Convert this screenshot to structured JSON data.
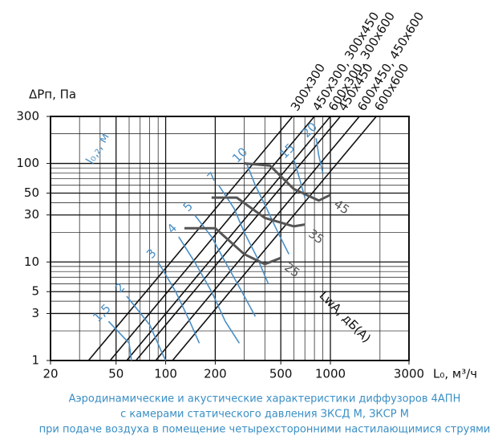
{
  "chart_data": {
    "type": "line",
    "ylabel": "ΔPп, Па",
    "xlabel": "L₀, м³/ч",
    "caption": [
      "Аэродинамические и акустические характеристики диффузоров 4АПН",
      "с камерами статического давления ЗКСД М, ЗКСР М",
      "при подаче воздуха в помещение четырехсторонними настилающимися струями"
    ],
    "log_x": true,
    "log_y": true,
    "xlim": [
      20,
      3000
    ],
    "ylim": [
      1,
      300
    ],
    "xticks": [
      20,
      50,
      100,
      200,
      500,
      1000,
      3000
    ],
    "yticks": [
      1,
      3,
      5,
      10,
      30,
      50,
      100,
      300
    ],
    "xgrid": [
      20,
      30,
      40,
      50,
      60,
      70,
      80,
      90,
      100,
      200,
      300,
      400,
      500,
      600,
      700,
      800,
      900,
      1000,
      2000,
      3000
    ],
    "ygrid": [
      1,
      2,
      3,
      4,
      5,
      6,
      7,
      8,
      9,
      10,
      20,
      30,
      40,
      50,
      60,
      70,
      80,
      90,
      100,
      200,
      300
    ],
    "series": [
      {
        "name": "300x300",
        "color": "#111111",
        "x": [
          34,
          590
        ],
        "y": [
          1,
          300
        ]
      },
      {
        "name": "450x300, 300x450",
        "color": "#111111",
        "x": [
          46,
          800
        ],
        "y": [
          1,
          300
        ]
      },
      {
        "name": "600x300, 300x600",
        "color": "#111111",
        "x": [
          58,
          1000
        ],
        "y": [
          1,
          300
        ]
      },
      {
        "name": "450x450",
        "color": "#111111",
        "x": [
          66,
          1150
        ],
        "y": [
          1,
          300
        ]
      },
      {
        "name": "600x450, 450x600",
        "color": "#111111",
        "x": [
          87,
          1500
        ],
        "y": [
          1,
          300
        ]
      },
      {
        "name": "600x600",
        "color": "#111111",
        "x": [
          110,
          1900
        ],
        "y": [
          1,
          300
        ]
      }
    ],
    "throw_label": "l₀,₂, м",
    "throw_series": [
      {
        "name": "1,5",
        "color": "#4a8fc6",
        "x": [
          45,
          60,
          62
        ],
        "y": [
          2.5,
          1.5,
          1
        ]
      },
      {
        "name": "2",
        "color": "#4a8fc6",
        "x": [
          58,
          80,
          95,
          100
        ],
        "y": [
          4.5,
          2.3,
          1.2,
          1
        ]
      },
      {
        "name": "3",
        "color": "#4a8fc6",
        "x": [
          90,
          115,
          140,
          160
        ],
        "y": [
          10,
          5,
          2.5,
          1.5
        ]
      },
      {
        "name": "4",
        "color": "#4a8fc6",
        "x": [
          120,
          150,
          190,
          230,
          280
        ],
        "y": [
          18,
          10,
          5,
          2.5,
          1.5
        ]
      },
      {
        "name": "5",
        "color": "#4a8fc6",
        "x": [
          150,
          190,
          230,
          290,
          350
        ],
        "y": [
          30,
          18,
          10,
          5,
          2.8
        ]
      },
      {
        "name": "7",
        "color": "#4a8fc6",
        "x": [
          210,
          260,
          300,
          360,
          420
        ],
        "y": [
          60,
          35,
          20,
          11,
          6
        ]
      },
      {
        "name": "10",
        "color": "#4a8fc6",
        "x": [
          310,
          350,
          410,
          480,
          560
        ],
        "y": [
          100,
          60,
          35,
          20,
          12
        ]
      },
      {
        "name": "15",
        "color": "#4a8fc6",
        "x": [
          600,
          650,
          700
        ],
        "y": [
          110,
          70,
          45
        ]
      },
      {
        "name": "20",
        "color": "#4a8fc6",
        "x": [
          820,
          850,
          900
        ],
        "y": [
          180,
          120,
          80
        ]
      }
    ],
    "noise_label": "LwA, дБ(A)",
    "noise_series": [
      {
        "name": "25",
        "color": "#555555",
        "x": [
          130,
          200,
          300,
          400,
          500
        ],
        "y": [
          22,
          22,
          12,
          9.5,
          11
        ]
      },
      {
        "name": "35",
        "color": "#555555",
        "x": [
          190,
          270,
          400,
          600,
          700
        ],
        "y": [
          45,
          45,
          28,
          23,
          24
        ]
      },
      {
        "name": "45",
        "color": "#555555",
        "x": [
          300,
          430,
          600,
          850,
          1000
        ],
        "y": [
          100,
          95,
          55,
          42,
          48
        ]
      }
    ]
  }
}
